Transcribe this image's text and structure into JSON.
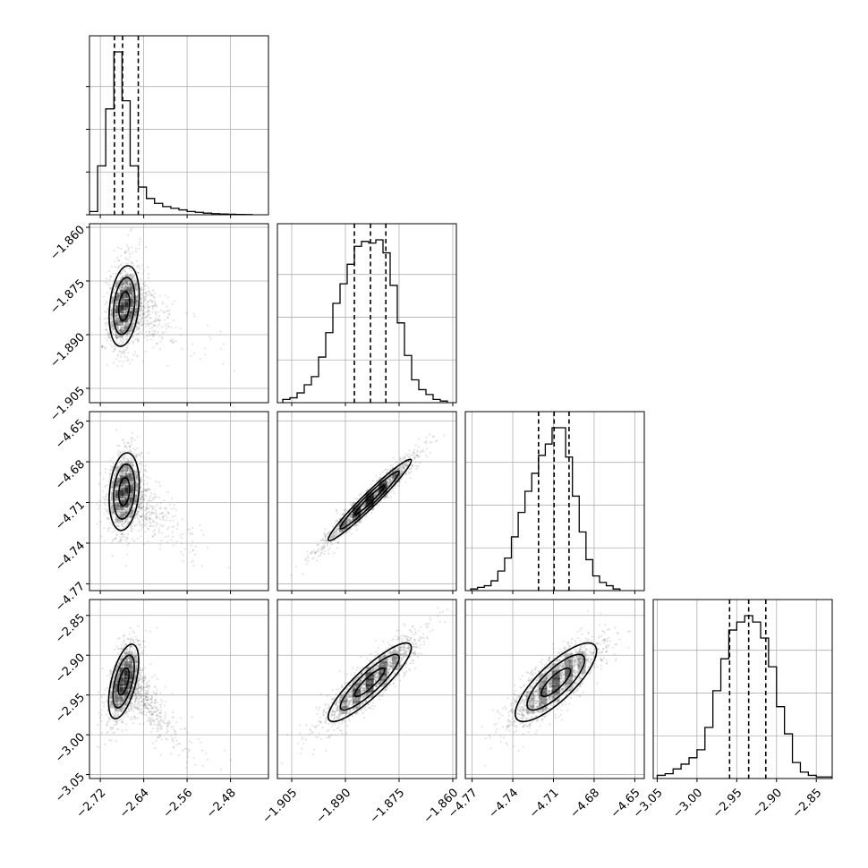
{
  "chart_data": {
    "type": "corner",
    "grid": true,
    "parameters": [
      {
        "range": [
          -2.74,
          -2.41
        ],
        "ticks": [
          -2.72,
          -2.64,
          -2.56,
          -2.48
        ],
        "tick_labels": [
          "−2.72",
          "−2.64",
          "−2.56",
          "−2.48"
        ],
        "quantiles": [
          -2.694,
          -2.679,
          -2.65
        ],
        "hist_bins": [
          -2.74,
          -2.725,
          -2.71,
          -2.695,
          -2.68,
          -2.665,
          -2.65,
          -2.635,
          -2.62,
          -2.605,
          -2.59,
          -2.575,
          -2.56,
          -2.545,
          -2.53,
          -2.515,
          -2.5,
          -2.485,
          -2.47,
          -2.455,
          -2.44
        ],
        "hist_counts": [
          2,
          30,
          65,
          100,
          70,
          30,
          17,
          10,
          7,
          5,
          4,
          3,
          2,
          1.5,
          1,
          0.7,
          0.5,
          0.3,
          0.2,
          0.1
        ]
      },
      {
        "range": [
          -1.909,
          -1.859
        ],
        "ticks": [
          -1.905,
          -1.89,
          -1.875,
          -1.86
        ],
        "tick_labels": [
          "−1.905",
          "−1.890",
          "−1.875",
          "−1.860"
        ],
        "quantiles": [
          -1.8875,
          -1.883,
          -1.8787
        ],
        "hist_bins": [
          -1.9075,
          -1.9055,
          -1.9035,
          -1.9015,
          -1.8995,
          -1.8975,
          -1.8955,
          -1.8935,
          -1.8915,
          -1.8895,
          -1.8875,
          -1.8855,
          -1.8835,
          -1.8815,
          -1.8795,
          -1.8775,
          -1.8755,
          -1.8735,
          -1.8715,
          -1.8695,
          -1.8675,
          -1.8655,
          -1.8635,
          -1.8615
        ],
        "hist_counts": [
          2,
          3,
          6,
          11,
          16,
          28,
          43,
          61,
          73,
          85,
          96,
          99,
          98,
          100,
          92,
          72,
          49,
          29,
          14,
          8,
          5,
          2,
          1
        ]
      },
      {
        "range": [
          -4.775,
          -4.643
        ],
        "ticks": [
          -4.77,
          -4.74,
          -4.71,
          -4.68,
          -4.65
        ],
        "tick_labels": [
          "−4.77",
          "−4.74",
          "−4.71",
          "−4.68",
          "−4.65"
        ],
        "quantiles": [
          -4.721,
          -4.7095,
          -4.6985
        ],
        "hist_bins": [
          -4.771,
          -4.766,
          -4.761,
          -4.756,
          -4.751,
          -4.746,
          -4.741,
          -4.736,
          -4.731,
          -4.726,
          -4.721,
          -4.716,
          -4.711,
          -4.706,
          -4.701,
          -4.696,
          -4.691,
          -4.686,
          -4.681,
          -4.676,
          -4.671,
          -4.666,
          -4.661
        ],
        "hist_counts": [
          1,
          2,
          3,
          6,
          12,
          20,
          33,
          48,
          61,
          72,
          83,
          90,
          100,
          100,
          82,
          58,
          36,
          19,
          9,
          5,
          3,
          1
        ]
      },
      {
        "range": [
          -3.055,
          -2.83
        ],
        "ticks": [
          -3.05,
          -3.0,
          -2.95,
          -2.9,
          -2.85
        ],
        "tick_labels": [
          "−3.05",
          "−3.00",
          "−2.95",
          "−2.90",
          "−2.85"
        ],
        "quantiles": [
          -2.959,
          -2.935,
          -2.9135
        ],
        "hist_bins": [
          -3.05,
          -3.04,
          -3.03,
          -3.02,
          -3.01,
          -3.0,
          -2.99,
          -2.98,
          -2.97,
          -2.96,
          -2.95,
          -2.94,
          -2.93,
          -2.92,
          -2.91,
          -2.9,
          -2.89,
          -2.88,
          -2.87,
          -2.86,
          -2.85,
          -2.84,
          -2.83
        ],
        "hist_counts": [
          2,
          3,
          6,
          9,
          13,
          18,
          32,
          55,
          75,
          93,
          98,
          102,
          98,
          88,
          70,
          45,
          28,
          10,
          4,
          2,
          1,
          1
        ]
      }
    ],
    "pairs": [
      {
        "row": 1,
        "col": 0,
        "center": [
          -2.676,
          -1.882
        ],
        "sigma": [
          0.016,
          0.0065
        ],
        "rho": 0.25,
        "tail": [
          0.07,
          0.004,
          0.35
        ]
      },
      {
        "row": 2,
        "col": 0,
        "center": [
          -2.676,
          -4.702
        ],
        "sigma": [
          0.016,
          0.0165
        ],
        "rho": 0.2,
        "tail": [
          0.07,
          0.02,
          0.35
        ]
      },
      {
        "row": 2,
        "col": 1,
        "center": [
          -1.8832,
          -4.7082
        ],
        "sigma": [
          0.0067,
          0.0173
        ],
        "rho": 0.97
      },
      {
        "row": 3,
        "col": 0,
        "center": [
          -2.677,
          -2.933
        ],
        "sigma": [
          0.016,
          0.027
        ],
        "rho": 0.55,
        "tail": [
          0.07,
          0.05,
          0.45
        ]
      },
      {
        "row": 3,
        "col": 1,
        "center": [
          -1.8832,
          -2.934
        ],
        "sigma": [
          0.0067,
          0.0285
        ],
        "rho": 0.88
      },
      {
        "row": 3,
        "col": 2,
        "center": [
          -4.7082,
          -2.934
        ],
        "sigma": [
          0.0173,
          0.0285
        ],
        "rho": 0.8
      }
    ],
    "contour_levels": [
      0.39,
      1.5,
      3.0
    ]
  }
}
